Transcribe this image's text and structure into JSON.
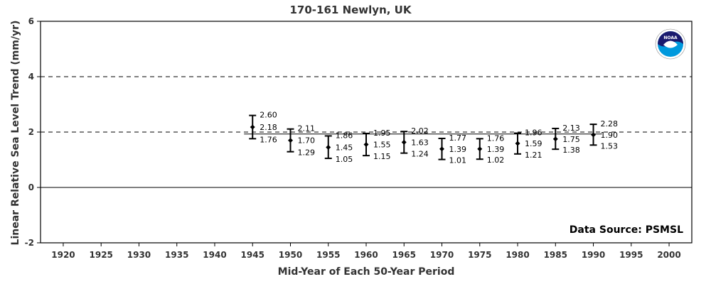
{
  "chart_data": {
    "type": "scatter",
    "title": "170-161 Newlyn, UK",
    "xlabel": "Mid-Year of Each 50-Year Period",
    "ylabel": "Linear Relative Sea Level Trend (mm/yr)",
    "xlim": [
      1917,
      2003
    ],
    "ylim": [
      -2,
      6
    ],
    "xticks": [
      "1920",
      "1925",
      "1930",
      "1935",
      "1940",
      "1945",
      "1950",
      "1955",
      "1960",
      "1965",
      "1970",
      "1975",
      "1980",
      "1985",
      "1990",
      "1995",
      "2000"
    ],
    "yticks": [
      "-2",
      "0",
      "2",
      "4",
      "6"
    ],
    "reference_lines": [
      {
        "y": 4,
        "style": "dashed"
      },
      {
        "y": 2,
        "style": "dashed"
      },
      {
        "y": 0,
        "style": "solid"
      }
    ],
    "overall_trend": 1.93,
    "series": [
      {
        "points": [
          {
            "x": 1945,
            "y": 2.18,
            "low": 1.76,
            "high": 2.6,
            "label_y": "2.18",
            "label_low": "1.76",
            "label_high": "2.60"
          },
          {
            "x": 1950,
            "y": 1.7,
            "low": 1.29,
            "high": 2.11,
            "label_y": "1.70",
            "label_low": "1.29",
            "label_high": "2.11"
          },
          {
            "x": 1955,
            "y": 1.45,
            "low": 1.05,
            "high": 1.86,
            "label_y": "1.45",
            "label_low": "1.05",
            "label_high": "1.86"
          },
          {
            "x": 1960,
            "y": 1.55,
            "low": 1.15,
            "high": 1.95,
            "label_y": "1.55",
            "label_low": "1.15",
            "label_high": "1.95"
          },
          {
            "x": 1965,
            "y": 1.63,
            "low": 1.24,
            "high": 2.02,
            "label_y": "1.63",
            "label_low": "1.24",
            "label_high": "2.02"
          },
          {
            "x": 1970,
            "y": 1.39,
            "low": 1.01,
            "high": 1.77,
            "label_y": "1.39",
            "label_low": "1.01",
            "label_high": "1.77"
          },
          {
            "x": 1975,
            "y": 1.39,
            "low": 1.02,
            "high": 1.76,
            "label_y": "1.39",
            "label_low": "1.02",
            "label_high": "1.76"
          },
          {
            "x": 1980,
            "y": 1.59,
            "low": 1.21,
            "high": 1.96,
            "label_y": "1.59",
            "label_low": "1.21",
            "label_high": "1.96"
          },
          {
            "x": 1985,
            "y": 1.75,
            "low": 1.38,
            "high": 2.13,
            "label_y": "1.75",
            "label_low": "1.38",
            "label_high": "2.13"
          },
          {
            "x": 1990,
            "y": 1.9,
            "low": 1.53,
            "high": 2.28,
            "label_y": "1.90",
            "label_low": "1.53",
            "label_high": "2.28"
          }
        ]
      }
    ],
    "annotation": "Data Source: PSMSL",
    "logo": {
      "text": "NOAA",
      "colors": [
        "#1a1a6e",
        "#0099dd",
        "#ffffff"
      ]
    }
  }
}
